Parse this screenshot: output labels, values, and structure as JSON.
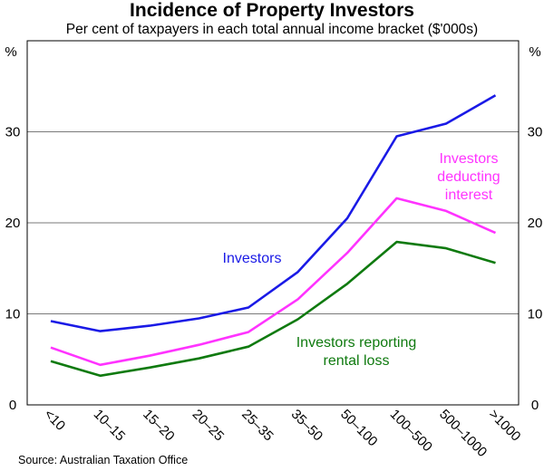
{
  "chart_data": {
    "type": "line",
    "title": "Incidence of Property Investors",
    "subtitle": "Per cent of taxpayers in each total annual income bracket ($'000s)",
    "y_unit_label": "%",
    "ylim": [
      0,
      40
    ],
    "yticks": [
      0,
      10,
      20,
      30
    ],
    "grid": true,
    "categories": [
      "<10",
      "10–15",
      "15–20",
      "20–25",
      "25–35",
      "35–50",
      "50–100",
      "100–500",
      "500–1000",
      ">1000"
    ],
    "series": [
      {
        "name": "Investors",
        "label_lines": [
          "Investors"
        ],
        "color": "#1a1ae6",
        "values": [
          9.2,
          8.1,
          8.7,
          9.5,
          10.7,
          14.6,
          20.5,
          29.5,
          30.9,
          34.0
        ]
      },
      {
        "name": "Investors deducting interest",
        "label_lines": [
          "Investors",
          "deducting",
          "interest"
        ],
        "color": "#ff33ff",
        "values": [
          6.3,
          4.4,
          5.4,
          6.6,
          8.0,
          11.6,
          16.7,
          22.7,
          21.3,
          18.9
        ]
      },
      {
        "name": "Investors reporting rental loss",
        "label_lines": [
          "Investors reporting",
          "rental loss"
        ],
        "color": "#0f7a0f",
        "values": [
          4.8,
          3.2,
          4.1,
          5.1,
          6.4,
          9.4,
          13.3,
          17.9,
          17.2,
          15.6
        ]
      }
    ],
    "source": "Source: Australian Taxation Office"
  }
}
